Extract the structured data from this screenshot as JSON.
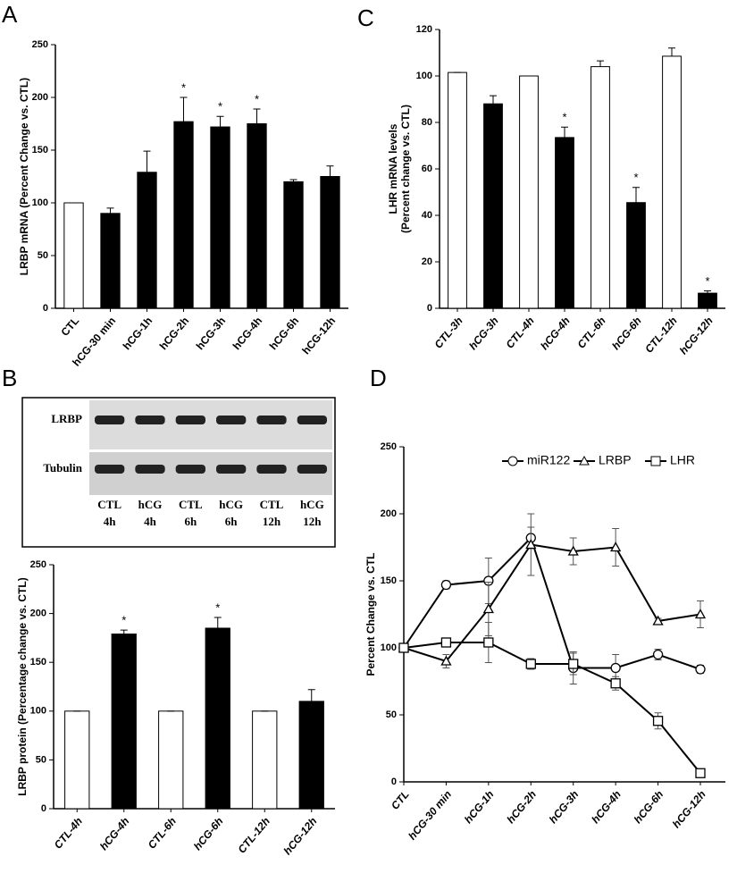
{
  "chart_data": [
    {
      "panel": "A",
      "type": "bar",
      "ylabel": [
        "LRBP mRNA (Percent Change vs. CTL)"
      ],
      "categories": [
        "CTL",
        "hCG-30 min",
        "hCG-1h",
        "hCG-2h",
        "hCG-3h",
        "hCG-4h",
        "hCG-6h",
        "hCG-12h"
      ],
      "values": [
        100,
        90,
        129,
        177,
        172,
        175,
        120,
        125
      ],
      "errors": [
        0,
        5,
        20,
        23,
        10,
        14,
        2,
        10
      ],
      "colors": [
        "#ffffff",
        "#000000",
        "#000000",
        "#000000",
        "#000000",
        "#000000",
        "#000000",
        "#000000"
      ],
      "annotations": [
        {
          "text": "*",
          "category": "hCG-2h"
        },
        {
          "text": "*",
          "category": "hCG-3h"
        },
        {
          "text": "*",
          "category": "hCG-4h"
        }
      ],
      "ylim": [
        0,
        250
      ],
      "yticks": [
        0,
        50,
        100,
        150,
        200,
        250
      ],
      "italic_labels": false
    },
    {
      "panel": "C",
      "type": "bar",
      "ylabel": [
        "LHR mRNA levels",
        "(Percent change vs. CTL)"
      ],
      "categories": [
        "CTL-3h",
        "hCG-3h",
        "CTL-4h",
        "hCG-4h",
        "CTL-6h",
        "hCG-6h",
        "CTL-12h",
        "hCG-12h"
      ],
      "values": [
        101.5,
        88,
        100,
        73.5,
        104,
        45.5,
        108.5,
        6.5
      ],
      "errors": [
        0,
        3.5,
        0,
        4.5,
        2.5,
        6.5,
        3.5,
        1
      ],
      "colors": [
        "#ffffff",
        "#000000",
        "#ffffff",
        "#000000",
        "#ffffff",
        "#000000",
        "#ffffff",
        "#000000"
      ],
      "annotations": [
        {
          "text": "*",
          "category": "hCG-4h"
        },
        {
          "text": "*",
          "category": "hCG-6h"
        },
        {
          "text": "*",
          "category": "hCG-12h"
        }
      ],
      "ylim": [
        0,
        120
      ],
      "yticks": [
        0,
        20,
        40,
        60,
        80,
        100,
        120
      ],
      "italic_labels": true
    },
    {
      "panel": "B",
      "type": "bar",
      "ylabel": [
        "LRBP protein (Percentage change vs. CTL)"
      ],
      "categories": [
        "CTL-4h",
        "hCG-4h",
        "CTL-6h",
        "hCG-6h",
        "CTL-12h",
        "hCG-12h"
      ],
      "values": [
        100,
        179,
        100,
        185,
        100,
        110
      ],
      "errors": [
        0,
        4,
        0,
        11,
        0,
        12
      ],
      "colors": [
        "#ffffff",
        "#000000",
        "#ffffff",
        "#000000",
        "#ffffff",
        "#000000"
      ],
      "annotations": [
        {
          "text": "*",
          "category": "hCG-4h"
        },
        {
          "text": "*",
          "category": "hCG-6h"
        }
      ],
      "ylim": [
        0,
        250
      ],
      "yticks": [
        0,
        50,
        100,
        150,
        200,
        250
      ],
      "italic_labels": true
    },
    {
      "panel": "D",
      "type": "line",
      "ylabel": [
        "Percent Change vs. CTL"
      ],
      "categories": [
        "CTL",
        "hCG-30 min",
        "hCG-1h",
        "hCG-2h",
        "hCG-3h",
        "hCG-4h",
        "hCG-6h",
        "hCG-12h"
      ],
      "series": [
        {
          "name": "miR122",
          "color": "#000000",
          "marker": "circle",
          "values": [
            100,
            147,
            150,
            182,
            85,
            85,
            95,
            84
          ],
          "errors": [
            0,
            3,
            17,
            8,
            12,
            10,
            4,
            3
          ]
        },
        {
          "name": "LRBP",
          "color": "#000000",
          "marker": "triangle",
          "values": [
            100,
            90,
            129,
            177,
            172,
            175,
            120,
            125
          ],
          "errors": [
            0,
            5,
            20,
            23,
            10,
            14,
            2,
            10
          ]
        },
        {
          "name": "LHR",
          "color": "#000000",
          "marker": "square",
          "values": [
            100,
            104,
            104,
            88,
            88,
            73.5,
            45.5,
            6.5
          ],
          "errors": [
            0,
            0,
            15,
            4,
            8,
            5,
            6,
            1
          ]
        }
      ],
      "legend": "top-right",
      "ylim": [
        0,
        250
      ],
      "yticks": [
        0,
        50,
        100,
        150,
        200,
        250
      ],
      "italic_labels": true
    }
  ],
  "blot": {
    "rows": [
      "LRBP",
      "Tubulin"
    ],
    "lanes": [
      [
        "CTL",
        "4h"
      ],
      [
        "hCG",
        "4h"
      ],
      [
        "CTL",
        "6h"
      ],
      [
        "hCG",
        "6h"
      ],
      [
        "CTL",
        "12h"
      ],
      [
        "hCG",
        "12h"
      ]
    ]
  }
}
